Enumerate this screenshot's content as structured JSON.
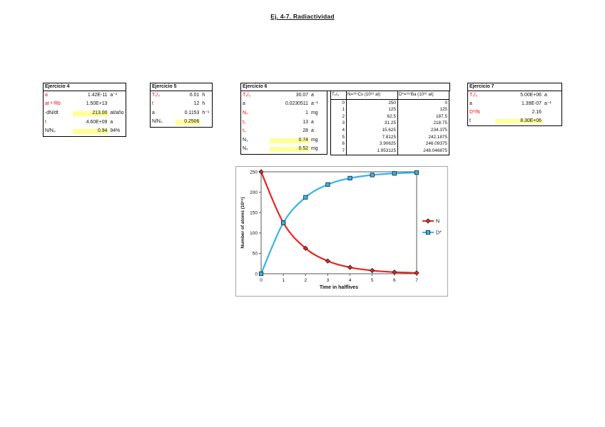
{
  "title": "Ej. 4-7. Radiactividad",
  "colors": {
    "given_label_red": "#FF0000",
    "answer_highlight_yellow": "#FFFF99",
    "series_n_red": "#E8251F",
    "series_d_blue": "#35B5EA"
  },
  "ejercicio4": {
    "title": "Ejercicio 4",
    "rows": [
      {
        "label": "a",
        "color": "red",
        "value": "1.42E-11",
        "unit": "a⁻¹",
        "highlight": false
      },
      {
        "label": "at ⁸⁷Rb",
        "color": "red",
        "value": "1.50E+13",
        "unit": "",
        "highlight": false
      },
      {
        "label": "-dN/dt",
        "color": "black",
        "value": "213.00",
        "unit": "at/año",
        "highlight": true
      },
      {
        "label": "t",
        "color": "red",
        "value": "4.60E+09",
        "unit": "a",
        "highlight": false
      },
      {
        "label": "N/N₀",
        "color": "black",
        "value": "0.94",
        "unit": "94%",
        "highlight": true
      }
    ]
  },
  "ejercicio5": {
    "title": "Ejercicio 5",
    "rows": [
      {
        "label": "T₁/₂",
        "color": "red",
        "value": "6.01",
        "unit": "h",
        "highlight": false
      },
      {
        "label": "t",
        "color": "red",
        "value": "12",
        "unit": "h",
        "highlight": false
      },
      {
        "label": "a",
        "color": "black",
        "value": "0.1153",
        "unit": "h⁻¹",
        "highlight": false
      },
      {
        "label": "N/N₀",
        "color": "black",
        "value": "0.2506",
        "unit": "",
        "highlight": true
      }
    ]
  },
  "ejercicio6": {
    "title": "Ejercicio 6",
    "rows": [
      {
        "label": "T₁/₂",
        "color": "red",
        "value": "30.07",
        "unit": "a",
        "highlight": false
      },
      {
        "label": "a",
        "color": "black",
        "value": "0.0230511",
        "unit": "a⁻¹",
        "highlight": false
      },
      {
        "label": "N₀",
        "color": "red",
        "value": "1",
        "unit": "mg",
        "highlight": false
      },
      {
        "label": "t₁",
        "color": "red",
        "value": "13",
        "unit": "a",
        "highlight": false
      },
      {
        "label": "t₂",
        "color": "red",
        "value": "28",
        "unit": "a",
        "highlight": false
      },
      {
        "label": "N₁",
        "color": "black",
        "value": "0.74",
        "unit": "mg",
        "highlight": true
      },
      {
        "label": "N₂",
        "color": "black",
        "value": "0.52",
        "unit": "mg",
        "highlight": true
      }
    ],
    "table": {
      "headers": [
        "T₁/₂",
        "N=¹³⁷Cs (10¹⁶ at)",
        "D*=¹³⁷Ba (10¹⁶ at)"
      ],
      "rows": [
        [
          "0",
          "250",
          "0"
        ],
        [
          "1",
          "125",
          "125"
        ],
        [
          "2",
          "62.5",
          "187.5"
        ],
        [
          "3",
          "31.25",
          "218.75"
        ],
        [
          "4",
          "15.625",
          "234.375"
        ],
        [
          "5",
          "7.8125",
          "242.1875"
        ],
        [
          "6",
          "3.90625",
          "246.09375"
        ],
        [
          "7",
          "1.953125",
          "248.046875"
        ]
      ]
    }
  },
  "ejercicio7": {
    "title": "Ejercicio 7",
    "rows": [
      {
        "label": "T₁/₂",
        "color": "red",
        "value": "5.00E+06",
        "unit": "a",
        "highlight": false
      },
      {
        "label": "a",
        "color": "black",
        "value": "1.39E-07",
        "unit": "a⁻¹",
        "highlight": false
      },
      {
        "label": "D*/N",
        "color": "red",
        "value": "2.16",
        "unit": "",
        "highlight": false
      },
      {
        "label": "t",
        "color": "black",
        "value": "8.30E+06",
        "unit": "",
        "highlight": true
      }
    ]
  },
  "chart_data": {
    "type": "line",
    "title": "",
    "xlabel": "Time in halflives",
    "ylabel": "Number of atoms (10¹⁶)",
    "x": [
      0,
      1,
      2,
      3,
      4,
      5,
      6,
      7
    ],
    "series": [
      {
        "name": "N",
        "color": "#E8251F",
        "marker": "diamond",
        "values": [
          250,
          125,
          62.5,
          31.25,
          15.625,
          7.8125,
          3.90625,
          1.953125
        ]
      },
      {
        "name": "D*",
        "color": "#35B5EA",
        "marker": "square",
        "values": [
          0,
          125,
          187.5,
          218.75,
          234.375,
          242.1875,
          246.09375,
          248.046875
        ]
      }
    ],
    "xlim": [
      0,
      7
    ],
    "ylim": [
      0,
      250
    ],
    "xticks": [
      0,
      1,
      2,
      3,
      4,
      5,
      6,
      7
    ],
    "yticks": [
      0,
      50,
      100,
      150,
      200,
      250
    ],
    "grid": false,
    "legend_position": "right"
  }
}
